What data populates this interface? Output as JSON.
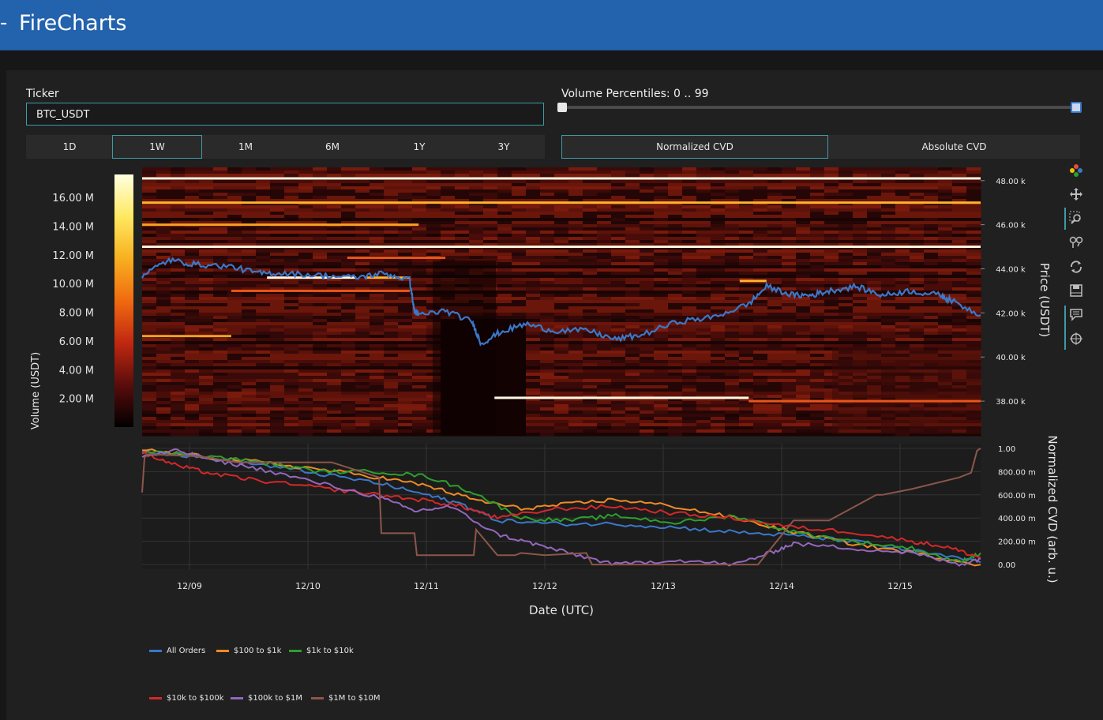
{
  "app": {
    "title": "FireCharts",
    "menu_glyph": "-"
  },
  "controls": {
    "ticker_label": "Ticker",
    "ticker_value": "BTC_USDT",
    "volume_percentiles_label": "Volume Percentiles: 0 .. 99",
    "volume_percentile_range": [
      0,
      99
    ],
    "time_ranges": [
      {
        "label": "1D",
        "active": false
      },
      {
        "label": "1W",
        "active": true
      },
      {
        "label": "1M",
        "active": false
      },
      {
        "label": "6M",
        "active": false
      },
      {
        "label": "1Y",
        "active": false
      },
      {
        "label": "3Y",
        "active": false
      }
    ],
    "cvd_modes": [
      {
        "label": "Normalized CVD",
        "active": true
      },
      {
        "label": "Absolute CVD",
        "active": false
      }
    ]
  },
  "toolbar": {
    "icons": [
      "plotly-logo-icon",
      "pan-icon",
      "zoom-icon",
      "compare-hover-icon",
      "reset-icon",
      "save-image-icon",
      "hover-closest-icon",
      "spike-lines-icon"
    ]
  },
  "colors": {
    "header": "#2362ac",
    "accent": "#3e9aa6",
    "price_line": "#3a78c9"
  },
  "chart_data": [
    {
      "type": "heatmap",
      "xlabel": "",
      "ylabel": "Price (USDT)",
      "colorbar_label": "Volume (USDT)",
      "colorbar_ticks": [
        "2.00 M",
        "4.00 M",
        "6.00 M",
        "8.00 M",
        "10.00 M",
        "12.00 M",
        "14.00 M",
        "16.00 M"
      ],
      "colorbar_values": [
        2000000,
        4000000,
        6000000,
        8000000,
        10000000,
        12000000,
        14000000,
        16000000
      ],
      "colorscale": [
        "#000000",
        "#5a0c0c",
        "#c02810",
        "#f06a10",
        "#f7b020",
        "#ffe860",
        "#ffffe0"
      ],
      "ylim": [
        36500,
        48600
      ],
      "y_ticks": [
        "38.00 k",
        "40.00 k",
        "42.00 k",
        "44.00 k",
        "46.00 k",
        "48.00 k"
      ],
      "y_tick_values": [
        38000,
        40000,
        42000,
        44000,
        46000,
        48000
      ],
      "price_series": {
        "name": "BTC price",
        "x": [
          0,
          0.3,
          0.6,
          1.0,
          1.3,
          1.6,
          2.0,
          2.4,
          2.7,
          3.0,
          3.05,
          3.1,
          3.4,
          3.7,
          3.8,
          4.0,
          4.3,
          4.6,
          5.0,
          5.3,
          5.6,
          6.0,
          6.4,
          6.8,
          7.0,
          7.3,
          7.5,
          7.7,
          8.0,
          8.3,
          8.6,
          8.95,
          9.05,
          9.4
        ],
        "y": [
          43700,
          44400,
          44200,
          44100,
          43800,
          43800,
          43700,
          43600,
          43800,
          43500,
          42100,
          41900,
          42100,
          41600,
          40600,
          41100,
          41500,
          41200,
          41200,
          40800,
          41000,
          41600,
          41800,
          42400,
          43200,
          42800,
          42800,
          43000,
          43200,
          42800,
          43000,
          42800,
          42600,
          41900
        ]
      },
      "liquidity_levels": [
        {
          "price": 48100,
          "from": 0,
          "to": 9.4,
          "intensity": 1.0
        },
        {
          "price": 47000,
          "from": 0,
          "to": 9.4,
          "intensity": 0.8
        },
        {
          "price": 46000,
          "from": 0,
          "to": 3.1,
          "intensity": 0.75
        },
        {
          "price": 45000,
          "from": 0,
          "to": 9.4,
          "intensity": 1.0
        },
        {
          "price": 44500,
          "from": 2.3,
          "to": 3.4,
          "intensity": 0.6
        },
        {
          "price": 43600,
          "from": 1.4,
          "to": 2.4,
          "intensity": 1.0
        },
        {
          "price": 43600,
          "from": 2.5,
          "to": 3.0,
          "intensity": 0.8
        },
        {
          "price": 43000,
          "from": 1.0,
          "to": 3.0,
          "intensity": 0.6
        },
        {
          "price": 43450,
          "from": 6.7,
          "to": 7.0,
          "intensity": 0.8
        },
        {
          "price": 40950,
          "from": 0,
          "to": 1.0,
          "intensity": 0.7
        },
        {
          "price": 38150,
          "from": 3.95,
          "to": 6.8,
          "intensity": 1.0
        },
        {
          "price": 38000,
          "from": 6.8,
          "to": 9.4,
          "intensity": 0.6
        }
      ]
    },
    {
      "type": "line",
      "xlabel": "Date (UTC)",
      "ylabel": "Normalized CVD (arb. u.)",
      "x_ticks": [
        "12/09",
        "12/10",
        "12/11",
        "12/12",
        "12/13",
        "12/14",
        "12/15"
      ],
      "x_tick_values": [
        0.4,
        1.4,
        2.4,
        3.4,
        4.4,
        5.4,
        6.4
      ],
      "y_ticks": [
        "0.00",
        "200.00 m",
        "400.00 m",
        "600.00 m",
        "800.00 m",
        "1.00"
      ],
      "y_tick_values": [
        0,
        0.2,
        0.4,
        0.6,
        0.8,
        1.0
      ],
      "ylim": [
        -0.04,
        1.04
      ],
      "xlim": [
        0,
        7.08
      ],
      "series": [
        {
          "name": "All Orders",
          "color": "#3a78c9",
          "x": [
            0,
            0.5,
            1.0,
            1.5,
            2.0,
            2.4,
            2.7,
            3.0,
            3.5,
            4.0,
            4.5,
            5.0,
            5.5,
            6.0,
            6.5,
            7.08
          ],
          "y": [
            0.98,
            0.92,
            0.86,
            0.78,
            0.7,
            0.6,
            0.52,
            0.38,
            0.35,
            0.35,
            0.32,
            0.28,
            0.25,
            0.2,
            0.12,
            0.02
          ]
        },
        {
          "name": "$100 to $1k",
          "color": "#f08a24",
          "x": [
            0,
            0.5,
            1.0,
            1.5,
            2.0,
            2.4,
            2.8,
            3.2,
            3.6,
            4.0,
            4.5,
            5.0,
            5.5,
            6.0,
            6.5,
            7.08
          ],
          "y": [
            0.99,
            0.93,
            0.88,
            0.82,
            0.75,
            0.68,
            0.56,
            0.48,
            0.52,
            0.56,
            0.5,
            0.4,
            0.28,
            0.18,
            0.1,
            0.0
          ]
        },
        {
          "name": "$1k to $10k",
          "color": "#2ca02c",
          "x": [
            0,
            0.5,
            1.0,
            1.5,
            2.0,
            2.4,
            2.8,
            3.2,
            3.6,
            4.0,
            4.5,
            5.0,
            5.5,
            6.0,
            6.5,
            6.9,
            7.08
          ],
          "y": [
            0.97,
            0.94,
            0.88,
            0.8,
            0.8,
            0.76,
            0.62,
            0.4,
            0.38,
            0.42,
            0.36,
            0.42,
            0.28,
            0.2,
            0.14,
            0.02,
            0.1
          ]
        },
        {
          "name": "$10k to $100k",
          "color": "#d62728",
          "x": [
            0,
            0.3,
            0.6,
            1.0,
            1.5,
            2.0,
            2.4,
            2.7,
            3.0,
            3.5,
            4.0,
            4.5,
            5.0,
            5.5,
            6.0,
            6.5,
            6.8,
            7.08
          ],
          "y": [
            0.96,
            0.85,
            0.78,
            0.72,
            0.66,
            0.6,
            0.55,
            0.5,
            0.4,
            0.48,
            0.5,
            0.44,
            0.4,
            0.32,
            0.28,
            0.2,
            0.15,
            0.06
          ]
        },
        {
          "name": "$100k to $1M",
          "color": "#9467bd",
          "x": [
            0,
            0.3,
            0.6,
            1.0,
            1.5,
            2.0,
            2.3,
            2.6,
            3.0,
            3.3,
            3.6,
            4.0,
            4.5,
            5.0,
            5.3,
            5.5,
            6.0,
            6.5,
            6.9,
            7.08
          ],
          "y": [
            0.93,
            0.98,
            0.9,
            0.82,
            0.7,
            0.58,
            0.46,
            0.5,
            0.26,
            0.18,
            0.1,
            0.0,
            0.04,
            0.0,
            0.1,
            0.18,
            0.14,
            0.1,
            0.0,
            0.05
          ]
        },
        {
          "name": "$1M to $10M",
          "color": "#8c564b",
          "x": [
            0,
            0.02,
            0.05,
            0.5,
            0.8,
            1.2,
            1.6,
            2.0,
            2.02,
            2.3,
            2.32,
            2.8,
            2.82,
            3.0,
            3.05,
            3.15,
            3.2,
            3.4,
            3.75,
            3.8,
            5.2,
            5.5,
            5.55,
            5.8,
            6.2,
            6.25,
            6.5,
            6.9,
            7.0,
            7.05,
            7.08
          ],
          "y": [
            0.62,
            0.92,
            0.95,
            0.93,
            0.88,
            0.88,
            0.88,
            0.75,
            0.27,
            0.27,
            0.08,
            0.08,
            0.3,
            0.08,
            0.08,
            0.08,
            0.1,
            0.08,
            0.1,
            0.0,
            0.0,
            0.38,
            0.38,
            0.38,
            0.6,
            0.6,
            0.65,
            0.75,
            0.79,
            0.98,
            1.0
          ]
        }
      ]
    }
  ]
}
